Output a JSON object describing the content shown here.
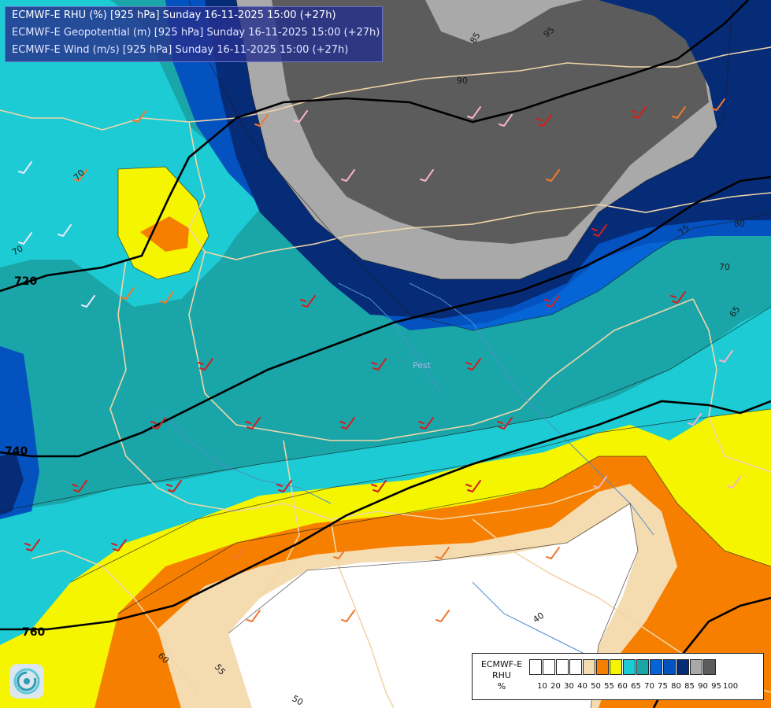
{
  "header": {
    "line1": "ECMWF-E RHU (%) [925 hPa] Sunday 16-11-2025 15:00 (+27h)",
    "line2": "ECMWF-E Geopotential (m) [925 hPa] Sunday 16-11-2025 15:00 (+27h)",
    "line3": "ECMWF-E Wind (m/s) [925 hPa] Sunday 16-11-2025 15:00 (+27h)"
  },
  "legend": {
    "title_lines": [
      "ECMWF-E",
      "RHU",
      "%"
    ],
    "ticks": [
      "10",
      "20",
      "30",
      "40",
      "50",
      "55",
      "60",
      "65",
      "70",
      "75",
      "80",
      "85",
      "90",
      "95",
      "100"
    ],
    "colors": [
      "#ffffff",
      "#ffffff",
      "#ffffff",
      "#ffffff",
      "#f5dcb0",
      "#f77f00",
      "#f5f500",
      "#1ccbd3",
      "#1aa6a9",
      "#0564d6",
      "#0452c0",
      "#062c78",
      "#a9a9a9",
      "#5c5c5c"
    ]
  },
  "map": {
    "geopotential_labels": [
      "720",
      "740",
      "760"
    ],
    "rhu_labels": [
      "95",
      "90",
      "85",
      "80",
      "75",
      "70",
      "65",
      "60",
      "55",
      "50",
      "40"
    ],
    "city_label": "Pest",
    "colors": {
      "white": "#ffffff",
      "beige": "#f5dcb0",
      "orange": "#f77f00",
      "yellow": "#f5f500",
      "cyan": "#1ccbd3",
      "teal": "#1aa6a9",
      "blue": "#0564d6",
      "royal": "#0452c0",
      "navy": "#062c78",
      "lightgray": "#a9a9a9",
      "darkgray": "#5c5c5c",
      "border": "#f0d6a8",
      "river": "#4d8fcf",
      "isobar": "#000000"
    }
  }
}
